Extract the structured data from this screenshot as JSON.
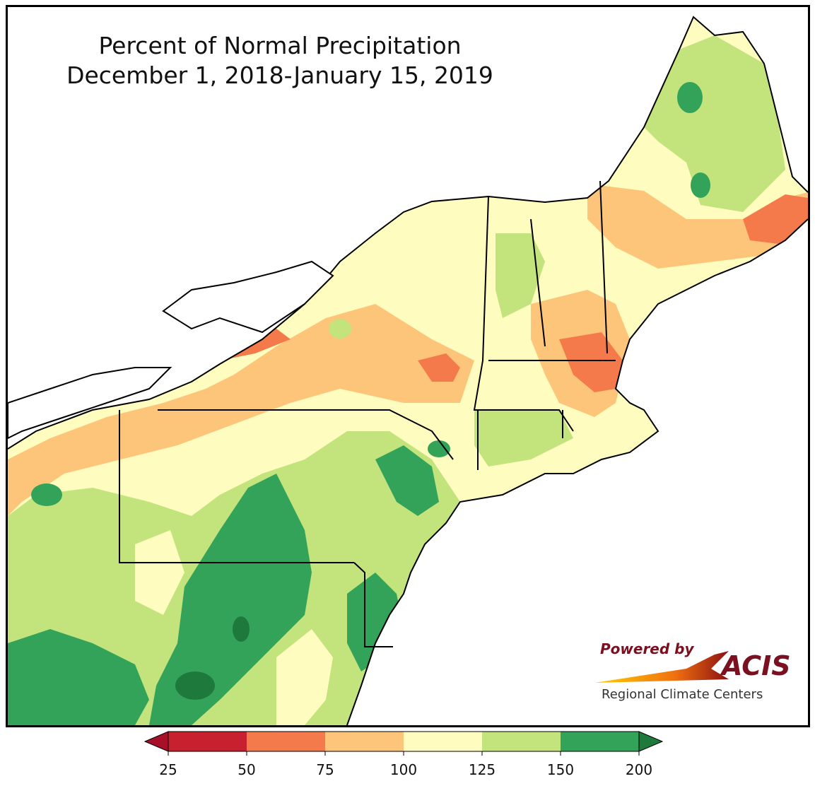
{
  "title": {
    "line1": "Percent of Normal Precipitation",
    "line2": "December 1, 2018-January 15, 2019"
  },
  "logo": {
    "powered_by": "Powered by",
    "brand": "ACIS",
    "subtitle": "Regional Climate Centers"
  },
  "legend": {
    "bins": [
      {
        "from": 25,
        "to": 50,
        "color": "#c7202e"
      },
      {
        "from": 50,
        "to": 75,
        "color": "#f47a4b"
      },
      {
        "from": 75,
        "to": 100,
        "color": "#fdc57a"
      },
      {
        "from": 100,
        "to": 125,
        "color": "#fefcbe"
      },
      {
        "from": 125,
        "to": 150,
        "color": "#c3e37c"
      },
      {
        "from": 150,
        "to": 200,
        "color": "#34a35a"
      }
    ],
    "tick_labels": [
      "25",
      "50",
      "75",
      "100",
      "125",
      "150",
      "200"
    ],
    "under_color": "#a8102a",
    "over_color": "#1e7a3c"
  }
}
